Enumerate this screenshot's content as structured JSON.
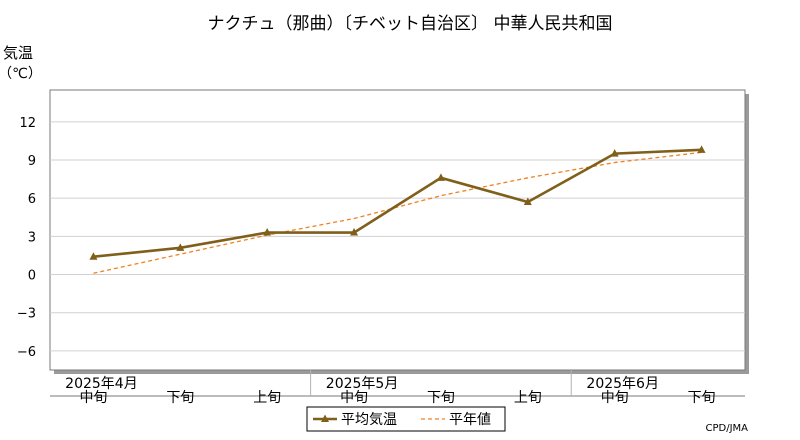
{
  "chart_data": {
    "type": "line",
    "title": "ナクチュ（那曲）〔チベット自治区〕 中華人民共和国",
    "ylabel": "気温",
    "yunit": "（℃）",
    "ylim": [
      -7.5,
      14.5
    ],
    "yticks": [
      -6,
      -3,
      0,
      3,
      6,
      9,
      12
    ],
    "grid": true,
    "legend_position": "bottom-center",
    "categories": [
      "中旬",
      "下旬",
      "上旬",
      "中旬",
      "下旬",
      "上旬",
      "中旬",
      "下旬"
    ],
    "month_labels": [
      {
        "label": "2025年4月",
        "index": 0
      },
      {
        "label": "2025年5月",
        "index": 3
      },
      {
        "label": "2025年6月",
        "index": 6
      }
    ],
    "series": [
      {
        "name": "平均気温",
        "color": "#7f5f1a",
        "style": "solid",
        "marker": "triangle",
        "values": [
          1.4,
          2.1,
          3.3,
          3.3,
          7.6,
          5.7,
          9.5,
          9.8
        ]
      },
      {
        "name": "平年値",
        "color": "#f08020",
        "style": "dashed",
        "marker": "none",
        "values": [
          0.1,
          1.6,
          3.1,
          4.4,
          6.2,
          7.6,
          8.8,
          9.6
        ]
      }
    ],
    "source": "CPD/JMA"
  }
}
